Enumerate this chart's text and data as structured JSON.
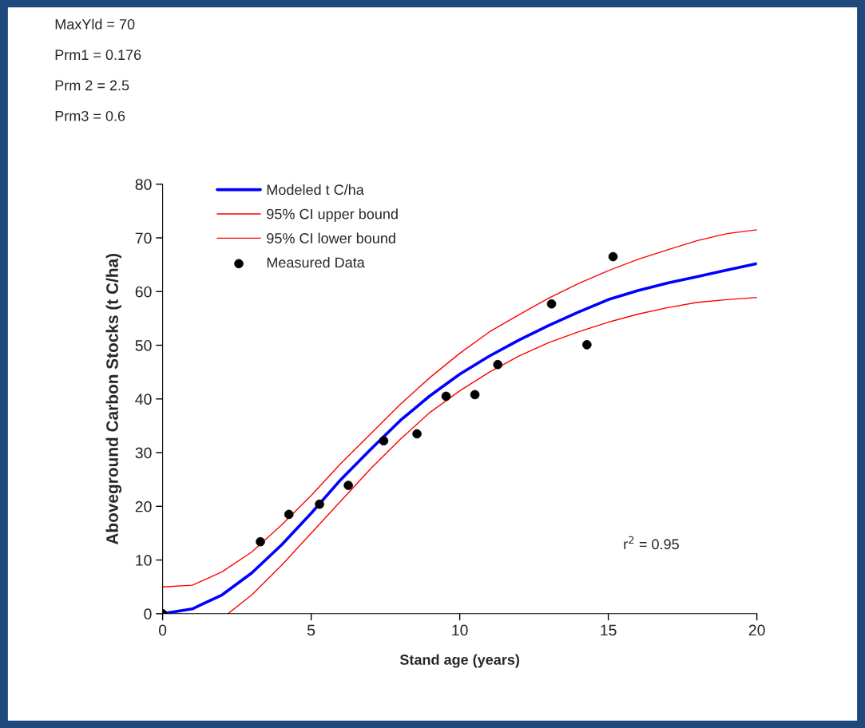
{
  "chart_data": {
    "type": "line",
    "xlabel": "Stand age (years)",
    "ylabel": "Aboveground Carbon Stocks (t C/ha)",
    "xlim": [
      0,
      20
    ],
    "xticks": [
      0,
      5,
      10,
      15,
      20
    ],
    "ylim": [
      0,
      80
    ],
    "yticks": [
      0,
      10,
      20,
      30,
      40,
      50,
      60,
      70,
      80
    ],
    "grid": false,
    "legend": "top left",
    "annotations": [
      "MaxYld = 70",
      "Prm1 = 0.176",
      "Prm 2 = 2.5",
      "Prm3 = 0.6",
      "r$^{2}$ = 0.95"
    ],
    "series": [
      {
        "name": "Modeled t C/ha",
        "type": "line",
        "color": "#0000ff",
        "marker": "none",
        "x": [
          0,
          1,
          2,
          3,
          4,
          5,
          6,
          7,
          8,
          9,
          10,
          11,
          12,
          13,
          14,
          15,
          16,
          17,
          18,
          19,
          20
        ],
        "values": [
          0,
          0.9,
          3.5,
          7.6,
          12.8,
          18.7,
          25,
          30.6,
          36,
          40.6,
          44.6,
          48,
          51,
          53.7,
          56.2,
          58.5,
          60.2,
          61.6,
          62.8,
          64,
          65.2
        ]
      },
      {
        "name": "95% CI upper bound",
        "type": "line",
        "color": "#ff0000",
        "marker": "none",
        "x": [
          0,
          1,
          2,
          3,
          4,
          5,
          6,
          7,
          8,
          9,
          10,
          11,
          12,
          13,
          14,
          15,
          16,
          17,
          18,
          19,
          20
        ],
        "values": [
          5,
          5.3,
          7.8,
          11.5,
          16.5,
          22,
          28,
          33.5,
          39,
          44,
          48.5,
          52.5,
          55.7,
          58.8,
          61.5,
          63.9,
          66,
          67.8,
          69.5,
          70.8,
          71.5
        ]
      },
      {
        "name": "95% CI lower bound",
        "type": "line",
        "color": "#ff0000",
        "marker": "none",
        "x": [
          2.2,
          3,
          4,
          5,
          6,
          7,
          8,
          9,
          10,
          11,
          12,
          13,
          14,
          15,
          16,
          17,
          18,
          19,
          20
        ],
        "values": [
          0,
          3.5,
          9,
          15,
          21,
          27,
          32.5,
          37.5,
          41.5,
          45,
          48,
          50.5,
          52.5,
          54.3,
          55.8,
          57,
          58,
          58.5,
          58.9
        ]
      },
      {
        "name": "Measured Data",
        "type": "scatter",
        "color": "#000000",
        "marker": "circle",
        "x": [
          0,
          3.29,
          4.25,
          5.28,
          6.25,
          7.44,
          8.56,
          9.54,
          10.51,
          11.28,
          13.09,
          14.28,
          15.16
        ],
        "values": [
          0,
          13.4,
          18.5,
          20.4,
          23.9,
          32.2,
          33.5,
          40.5,
          40.8,
          46.4,
          57.7,
          50.1,
          66.5
        ]
      }
    ]
  }
}
